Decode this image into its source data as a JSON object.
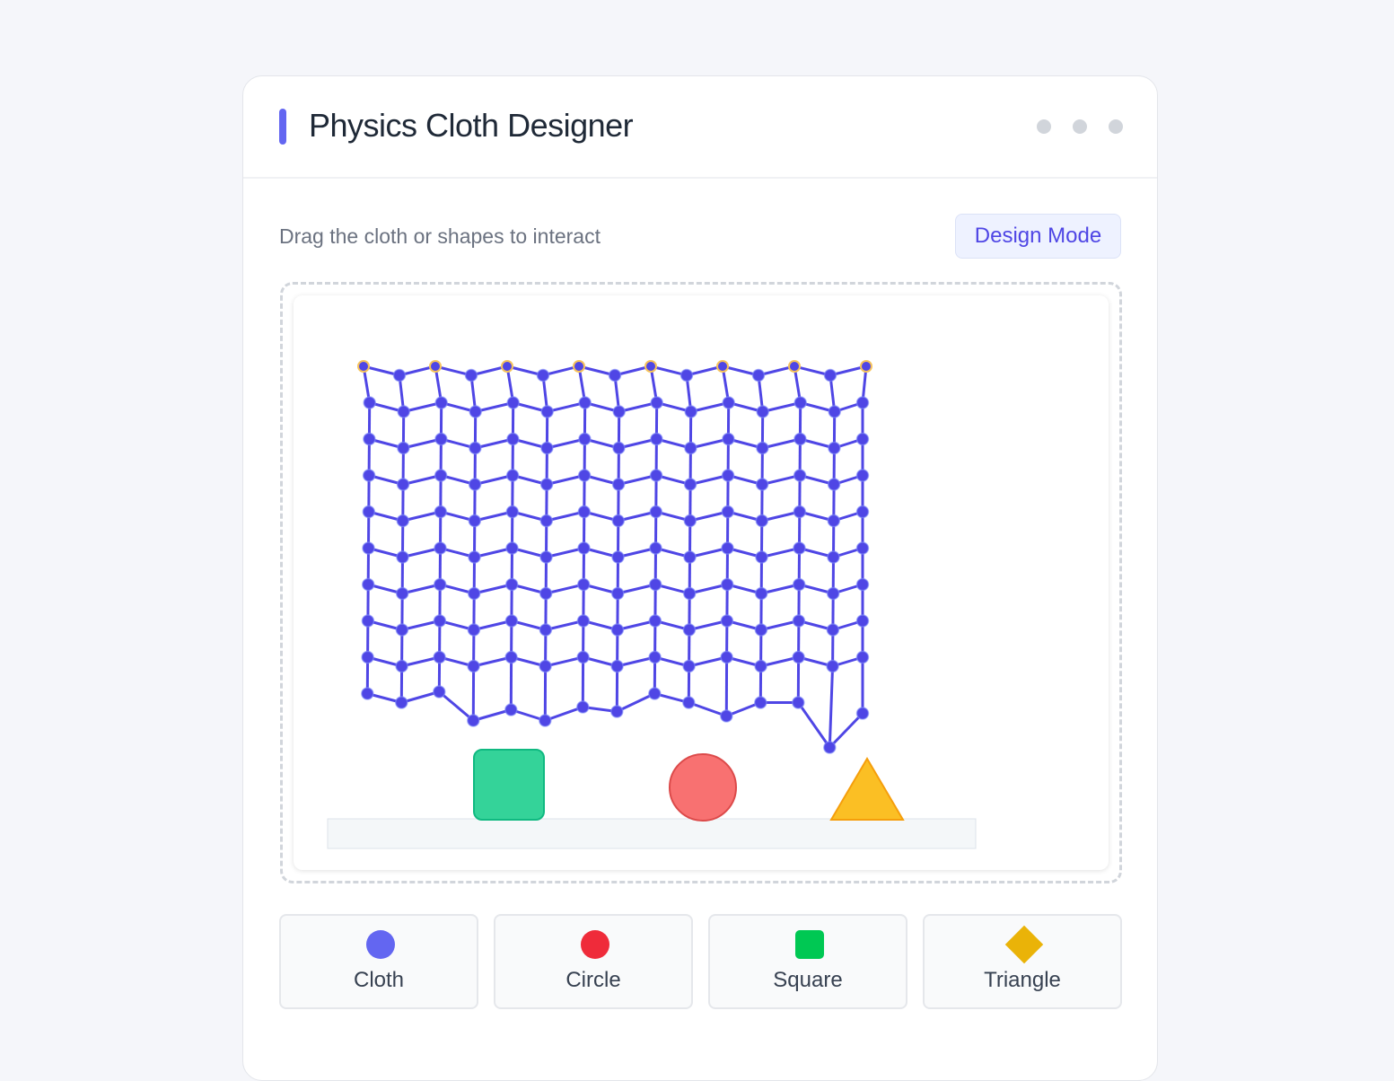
{
  "header": {
    "title": "Physics Cloth Designer",
    "window_dots": 3
  },
  "toolbar": {
    "hint": "Drag the cloth or shapes to interact",
    "mode_label": "Design Mode"
  },
  "canvas": {
    "cloth": {
      "columns": 15,
      "rows": 10,
      "color": "#4f46e5",
      "pin_color": "#f6c35c",
      "pinned_every": 2
    },
    "shapes": [
      {
        "type": "square",
        "color": "#34d399"
      },
      {
        "type": "circle",
        "color": "#f87171"
      },
      {
        "type": "triangle",
        "color": "#fbbf24"
      }
    ],
    "ground_color": "#f4f7f9"
  },
  "tools": [
    {
      "label": "Cloth",
      "icon": "circle-icon",
      "color": "#6366f1"
    },
    {
      "label": "Circle",
      "icon": "circle-icon",
      "color": "#ef2b3a"
    },
    {
      "label": "Square",
      "icon": "square-icon",
      "color": "#00c853"
    },
    {
      "label": "Triangle",
      "icon": "diamond-icon",
      "color": "#eab308"
    }
  ]
}
